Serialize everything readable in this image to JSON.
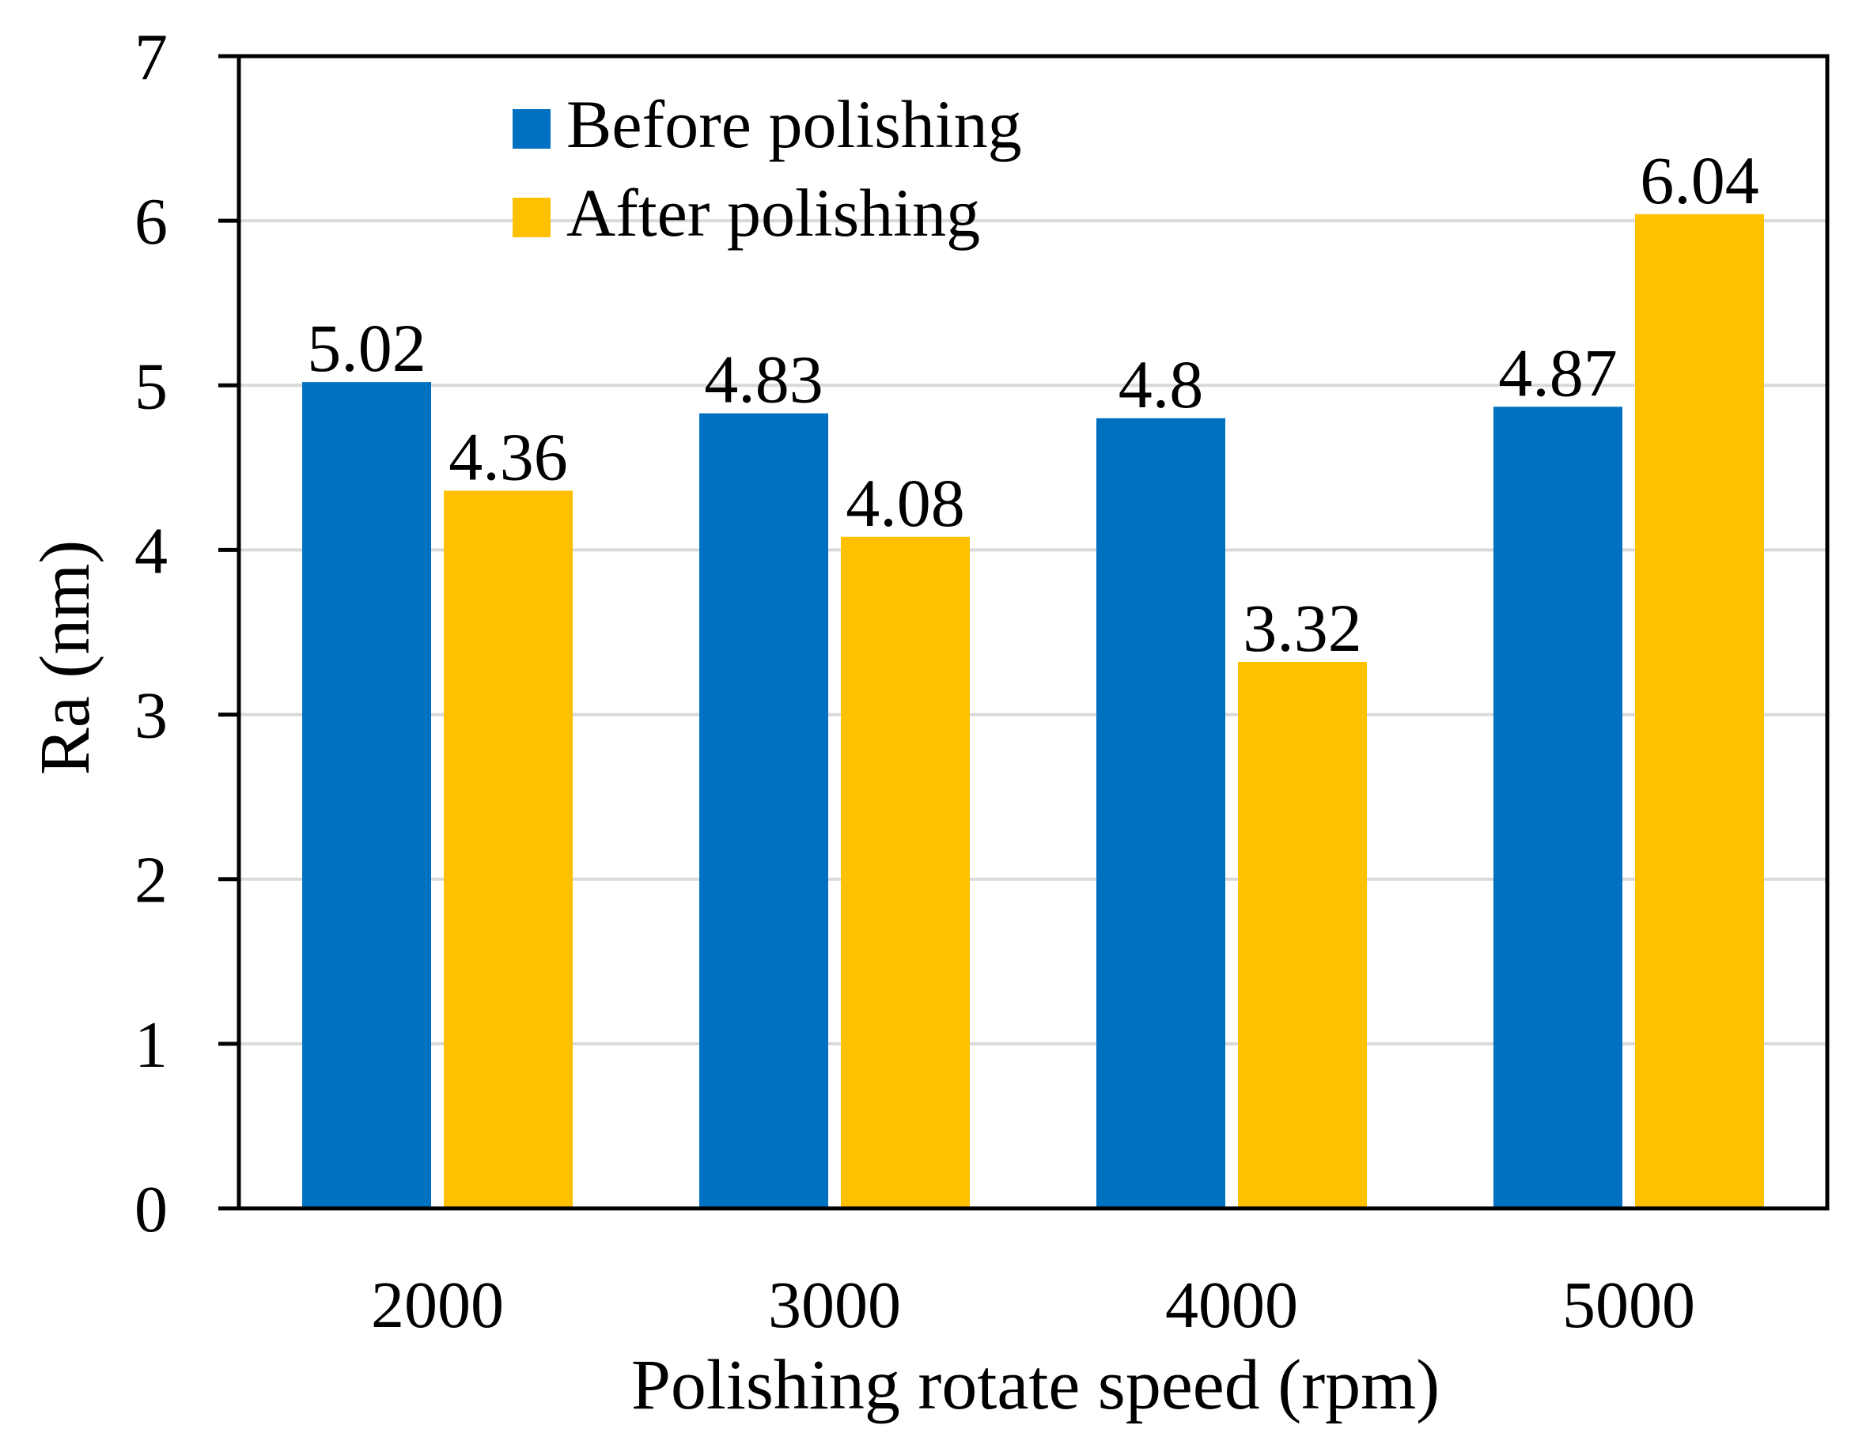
{
  "chart_data": {
    "type": "bar",
    "title": "",
    "xlabel": "Polishing rotate speed (rpm)",
    "ylabel": "Ra (nm)",
    "categories": [
      "2000",
      "3000",
      "4000",
      "5000"
    ],
    "series": [
      {
        "name": "Before polishing",
        "color": "#0070c0",
        "values": [
          5.02,
          4.83,
          4.8,
          4.87
        ],
        "labels": [
          "5.02",
          "4.83",
          "4.8",
          "4.87"
        ]
      },
      {
        "name": "After polishing",
        "color": "#ffc000",
        "values": [
          4.36,
          4.08,
          3.32,
          6.04
        ],
        "labels": [
          "4.36",
          "4.08",
          "3.32",
          "6.04"
        ]
      }
    ],
    "ylim": [
      0,
      7
    ],
    "yticks": [
      "0",
      "1",
      "2",
      "3",
      "4",
      "5",
      "6",
      "7"
    ],
    "grid": true,
    "legend": "top-left"
  }
}
